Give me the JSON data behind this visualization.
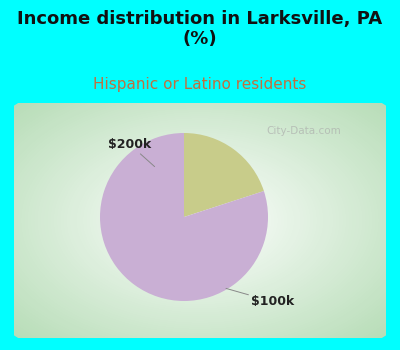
{
  "title": "Income distribution in Larksville, PA\n(%)",
  "subtitle": "Hispanic or Latino residents",
  "title_color": "#111111",
  "subtitle_color": "#c07040",
  "title_bg_color": "#00ffff",
  "slices": [
    {
      "label": "$100k",
      "value": 80,
      "color": "#c9afd4"
    },
    {
      "label": "$200k",
      "value": 20,
      "color": "#c8cc8a"
    }
  ],
  "watermark": "City-Data.com",
  "title_fontsize": 13,
  "subtitle_fontsize": 11,
  "label_fontsize": 9,
  "pie_startangle": 90,
  "bg_center": "#ffffff",
  "bg_edge": "#b8ddb8",
  "cyan_border": "#00ffff",
  "border_thickness": 5
}
